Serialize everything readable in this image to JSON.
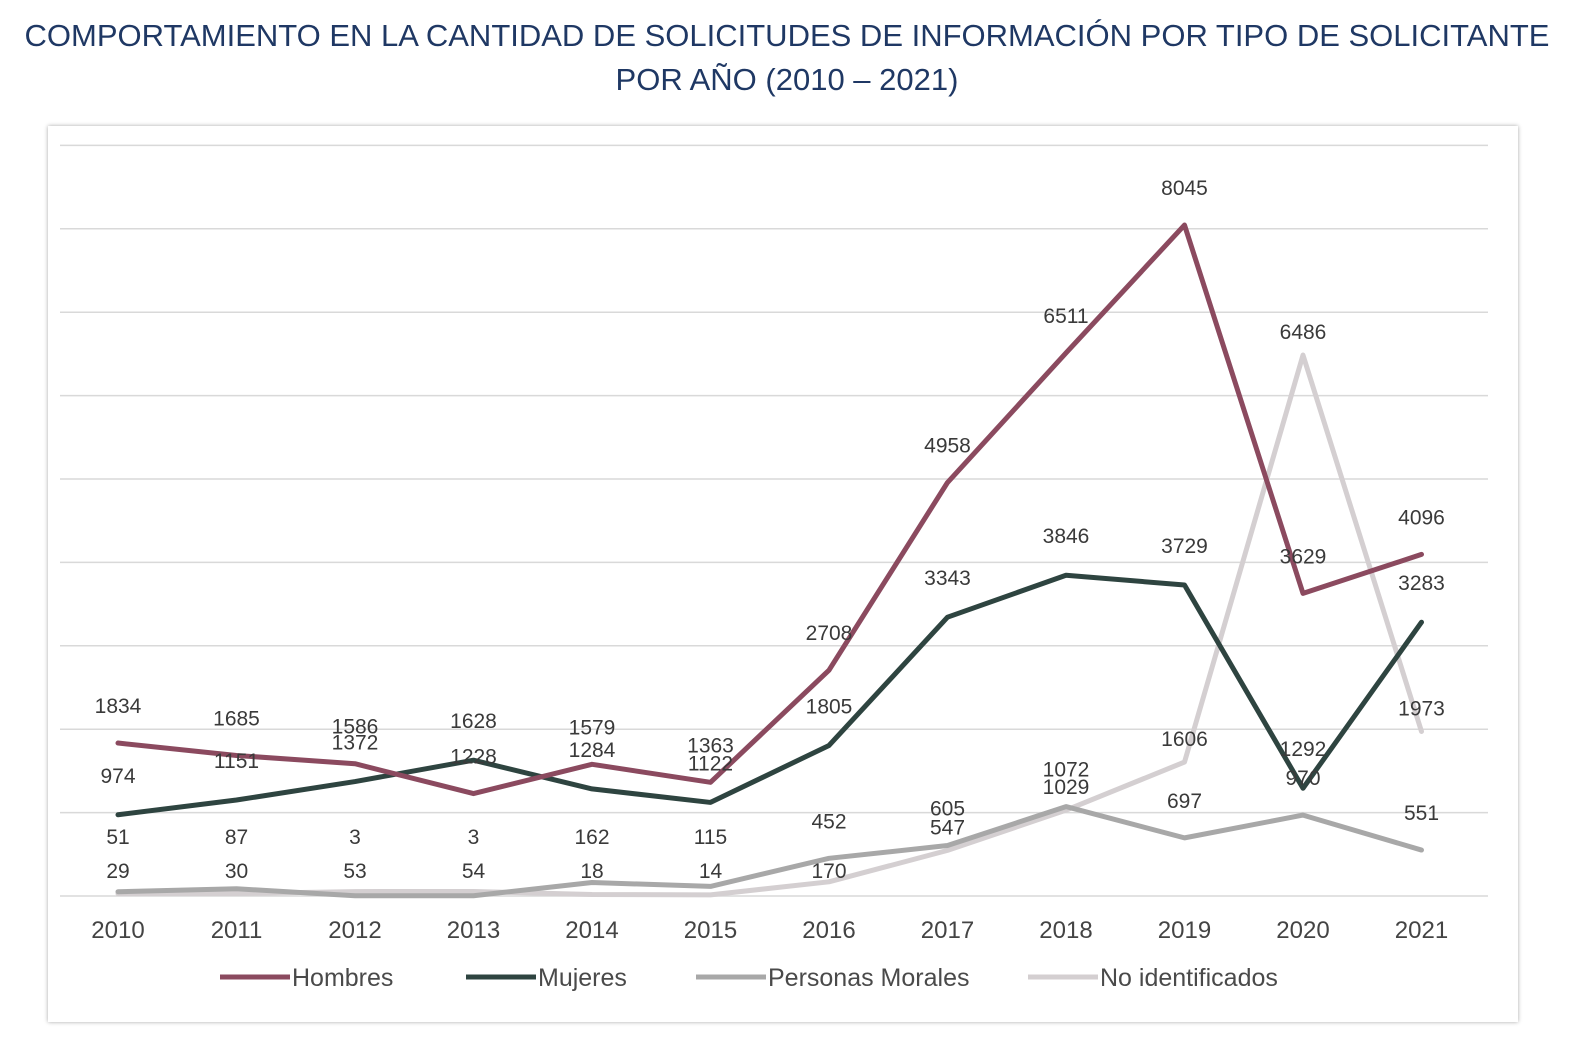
{
  "title_line1": "COMPORTAMIENTO EN LA CANTIDAD DE SOLICITUDES DE INFORMACIÓN POR TIPO DE SOLICITANTE",
  "title_line2": "POR AÑO (2010 – 2021)",
  "chart_data": {
    "type": "line",
    "title": "COMPORTAMIENTO EN LA CANTIDAD DE SOLICITUDES DE INFORMACIÓN POR TIPO DE SOLICITANTE POR AÑO (2010 – 2021)",
    "x": [
      "2010",
      "2011",
      "2012",
      "2013",
      "2014",
      "2015",
      "2016",
      "2017",
      "2018",
      "2019",
      "2020",
      "2021"
    ],
    "ylim": [
      0,
      9000
    ],
    "grid": true,
    "legend_position": "bottom",
    "series": [
      {
        "name": "Hombres",
        "color": "#8b4a5f",
        "values": [
          1834,
          1685,
          1586,
          1228,
          1579,
          1363,
          2708,
          4958,
          6511,
          8045,
          3629,
          4096
        ]
      },
      {
        "name": "Mujeres",
        "color": "#2e4440",
        "values": [
          974,
          1151,
          1372,
          1628,
          1284,
          1122,
          1805,
          3343,
          3846,
          3729,
          1292,
          3283
        ]
      },
      {
        "name": "Personas Morales",
        "color": "#a8a8a8",
        "values": [
          51,
          87,
          3,
          3,
          162,
          115,
          452,
          605,
          1072,
          697,
          970,
          551
        ]
      },
      {
        "name": "No identificados",
        "color": "#d4cfd1",
        "values": [
          29,
          30,
          53,
          54,
          18,
          14,
          170,
          547,
          1029,
          1606,
          6486,
          1973
        ]
      }
    ],
    "data_labels": [
      {
        "text": "1834",
        "x": "2010",
        "y": 1834,
        "series": "Hombres"
      },
      {
        "text": "1685",
        "x": "2011",
        "y": 1685,
        "series": "Hombres"
      },
      {
        "text": "1586",
        "x": "2012",
        "y": 1586,
        "series": "Hombres"
      },
      {
        "text": "1628",
        "x": "2013",
        "y": 1628,
        "series": "Mujeres"
      },
      {
        "text": "1579",
        "x": "2014",
        "y": 1579,
        "series": "Hombres"
      },
      {
        "text": "1363",
        "x": "2015",
        "y": 1363,
        "series": "Hombres"
      },
      {
        "text": "2708",
        "x": "2016",
        "y": 2708,
        "series": "Hombres"
      },
      {
        "text": "4958",
        "x": "2017",
        "y": 4958,
        "series": "Hombres"
      },
      {
        "text": "6511",
        "x": "2018",
        "y": 6511,
        "series": "Hombres"
      },
      {
        "text": "8045",
        "x": "2019",
        "y": 8045,
        "series": "Hombres"
      },
      {
        "text": "3629",
        "x": "2020",
        "y": 3629,
        "series": "Hombres"
      },
      {
        "text": "4096",
        "x": "2021",
        "y": 4096,
        "series": "Hombres"
      },
      {
        "text": "974",
        "x": "2010",
        "y": 974,
        "series": "Mujeres"
      },
      {
        "text": "1151",
        "x": "2011",
        "y": 1151,
        "series": "Mujeres"
      },
      {
        "text": "1372",
        "x": "2012",
        "y": 1372,
        "series": "Mujeres"
      },
      {
        "text": "1228",
        "x": "2013",
        "y": 1228,
        "series": "Hombres"
      },
      {
        "text": "1284",
        "x": "2014",
        "y": 1284,
        "series": "Mujeres"
      },
      {
        "text": "1122",
        "x": "2015",
        "y": 1122,
        "series": "Mujeres"
      },
      {
        "text": "1805",
        "x": "2016",
        "y": 1805,
        "series": "Mujeres"
      },
      {
        "text": "3343",
        "x": "2017",
        "y": 3343,
        "series": "Mujeres"
      },
      {
        "text": "3846",
        "x": "2018",
        "y": 3846,
        "series": "Mujeres"
      },
      {
        "text": "3729",
        "x": "2019",
        "y": 3729,
        "series": "Mujeres"
      },
      {
        "text": "1292",
        "x": "2020",
        "y": 1292,
        "series": "Mujeres"
      },
      {
        "text": "3283",
        "x": "2021",
        "y": 3283,
        "series": "Mujeres"
      },
      {
        "text": "51",
        "x": "2010",
        "y": 51,
        "series": "Personas Morales"
      },
      {
        "text": "87",
        "x": "2011",
        "y": 87,
        "series": "Personas Morales"
      },
      {
        "text": "3",
        "x": "2012",
        "y": 3,
        "series": "Personas Morales"
      },
      {
        "text": "3",
        "x": "2013",
        "y": 3,
        "series": "Personas Morales"
      },
      {
        "text": "18",
        "x": "2014",
        "y": 18,
        "series": "No identificados"
      },
      {
        "text": "14",
        "x": "2015",
        "y": 14,
        "series": "No identificados"
      },
      {
        "text": "452",
        "x": "2016",
        "y": 452,
        "series": "Personas Morales"
      },
      {
        "text": "605",
        "x": "2017",
        "y": 605,
        "series": "Personas Morales"
      },
      {
        "text": "1072",
        "x": "2018",
        "y": 1072,
        "series": "Personas Morales"
      },
      {
        "text": "697",
        "x": "2019",
        "y": 697,
        "series": "Personas Morales"
      },
      {
        "text": "970",
        "x": "2020",
        "y": 970,
        "series": "Personas Morales"
      },
      {
        "text": "551",
        "x": "2021",
        "y": 551,
        "series": "Personas Morales"
      },
      {
        "text": "29",
        "x": "2010",
        "y": 29,
        "series": "No identificados"
      },
      {
        "text": "30",
        "x": "2011",
        "y": 30,
        "series": "No identificados"
      },
      {
        "text": "53",
        "x": "2012",
        "y": 53,
        "series": "No identificados"
      },
      {
        "text": "54",
        "x": "2013",
        "y": 54,
        "series": "No identificados"
      },
      {
        "text": "162",
        "x": "2014",
        "y": 162,
        "series": "Personas Morales"
      },
      {
        "text": "115",
        "x": "2015",
        "y": 115,
        "series": "Personas Morales"
      },
      {
        "text": "170",
        "x": "2016",
        "y": 170,
        "series": "No identificados"
      },
      {
        "text": "547",
        "x": "2017",
        "y": 547,
        "series": "No identificados"
      },
      {
        "text": "1029",
        "x": "2018",
        "y": 1029,
        "series": "No identificados"
      },
      {
        "text": "1606",
        "x": "2019",
        "y": 1606,
        "series": "No identificados"
      },
      {
        "text": "6486",
        "x": "2020",
        "y": 6486,
        "series": "No identificados"
      },
      {
        "text": "1973",
        "x": "2021",
        "y": 1973,
        "series": "No identificados"
      }
    ]
  }
}
